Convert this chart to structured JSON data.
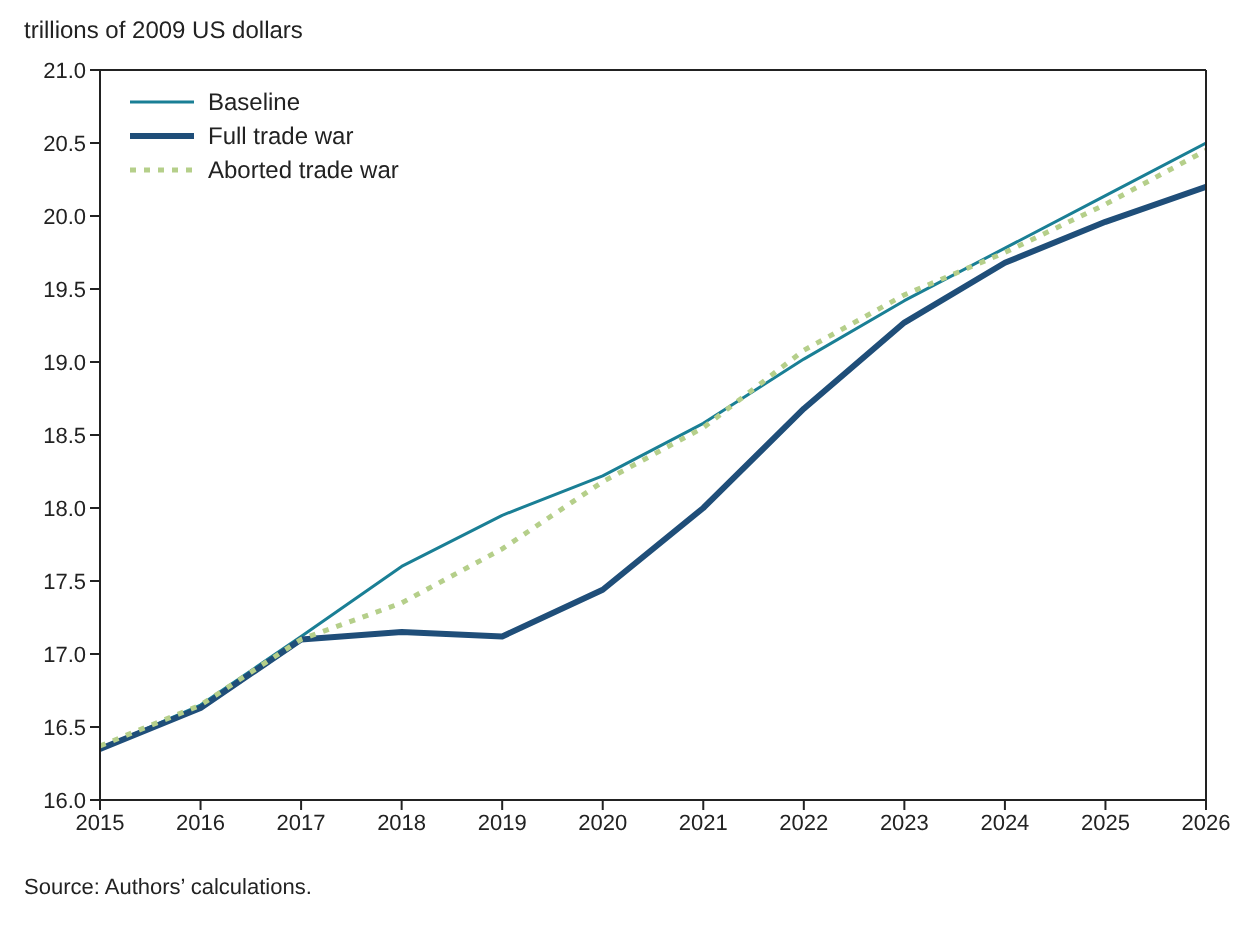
{
  "chart_data": {
    "type": "line",
    "ylabel": "trillions of 2009 US dollars",
    "x": [
      2015,
      2016,
      2017,
      2018,
      2019,
      2020,
      2021,
      2022,
      2023,
      2024,
      2025,
      2026
    ],
    "series": [
      {
        "name": "Baseline",
        "color": "#1a7f95",
        "line_style": "solid",
        "values": [
          16.35,
          16.65,
          17.12,
          17.6,
          17.95,
          18.22,
          18.58,
          19.02,
          19.42,
          19.78,
          20.14,
          20.5
        ]
      },
      {
        "name": "Full trade war",
        "color": "#1f4e79",
        "line_style": "solid",
        "values": [
          16.35,
          16.63,
          17.1,
          17.15,
          17.12,
          17.44,
          18.0,
          18.68,
          19.27,
          19.68,
          19.96,
          20.2
        ]
      },
      {
        "name": "Aborted trade war",
        "color": "#b5cf8a",
        "line_style": "dotted",
        "values": [
          16.37,
          16.65,
          17.1,
          17.35,
          17.72,
          18.18,
          18.55,
          19.08,
          19.46,
          19.75,
          20.08,
          20.45
        ]
      }
    ],
    "xlim": [
      2015,
      2026
    ],
    "xticks": [
      2015,
      2016,
      2017,
      2018,
      2019,
      2020,
      2021,
      2022,
      2023,
      2024,
      2025,
      2026
    ],
    "ylim": [
      16,
      21
    ],
    "yticks": [
      {
        "value": 16,
        "label": "16.0"
      },
      16.5,
      {
        "value": 17,
        "label": "17.0"
      },
      17.5,
      {
        "value": 18,
        "label": "18.0"
      },
      18.5,
      {
        "value": 19,
        "label": "19.0"
      },
      19.5,
      {
        "value": 20,
        "label": "20.0"
      },
      20.5,
      {
        "value": 21,
        "label": "21.0"
      }
    ],
    "grid": false,
    "legend": "top left",
    "marker": "none",
    "annotations": [
      "Source:  Authors’ calculations."
    ]
  }
}
